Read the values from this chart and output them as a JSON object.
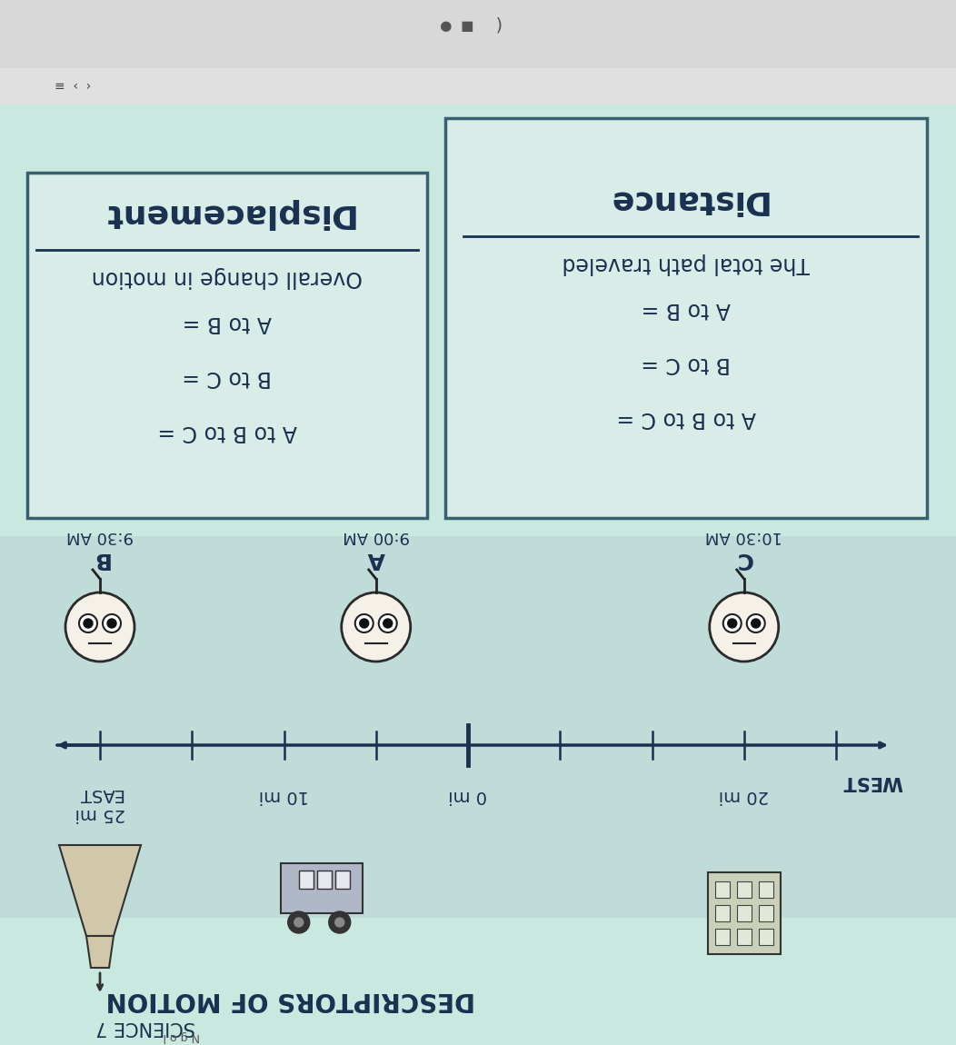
{
  "bg_color": "#b8d8d0",
  "screen_bg": "#c8e8e0",
  "box_bg": "#d8ede8",
  "box_border": "#3a6070",
  "text_color": "#1a3050",
  "title_text": "DESCRIPTORS OF MOTION",
  "subtitle_text": "SCIENCE 7",
  "dist_title": "Distance",
  "dist_sub": "The total path traveled",
  "dist_items": [
    "A to B =",
    "B to C =",
    "A to B to C ="
  ],
  "disp_title": "Displacement",
  "disp_sub": "Overall change in motion",
  "disp_items": [
    "A to B =",
    "B to C =",
    "A to B to C ="
  ],
  "pt_B_label": "B",
  "pt_B_time": "9:30 AM",
  "pt_A_label": "A",
  "pt_A_time": "9:00 AM",
  "pt_C_label": "C",
  "pt_C_time": "10:30 AM",
  "timeline_left_label": "25 mi\nEAST",
  "timeline_c1_label": "10 mi",
  "timeline_c2_label": "0 mi",
  "timeline_right_label": "20 mi",
  "west_label": "WEST",
  "browser_bar_color": "#e8e8e8",
  "browser_tab_color": "#d0d0d0"
}
